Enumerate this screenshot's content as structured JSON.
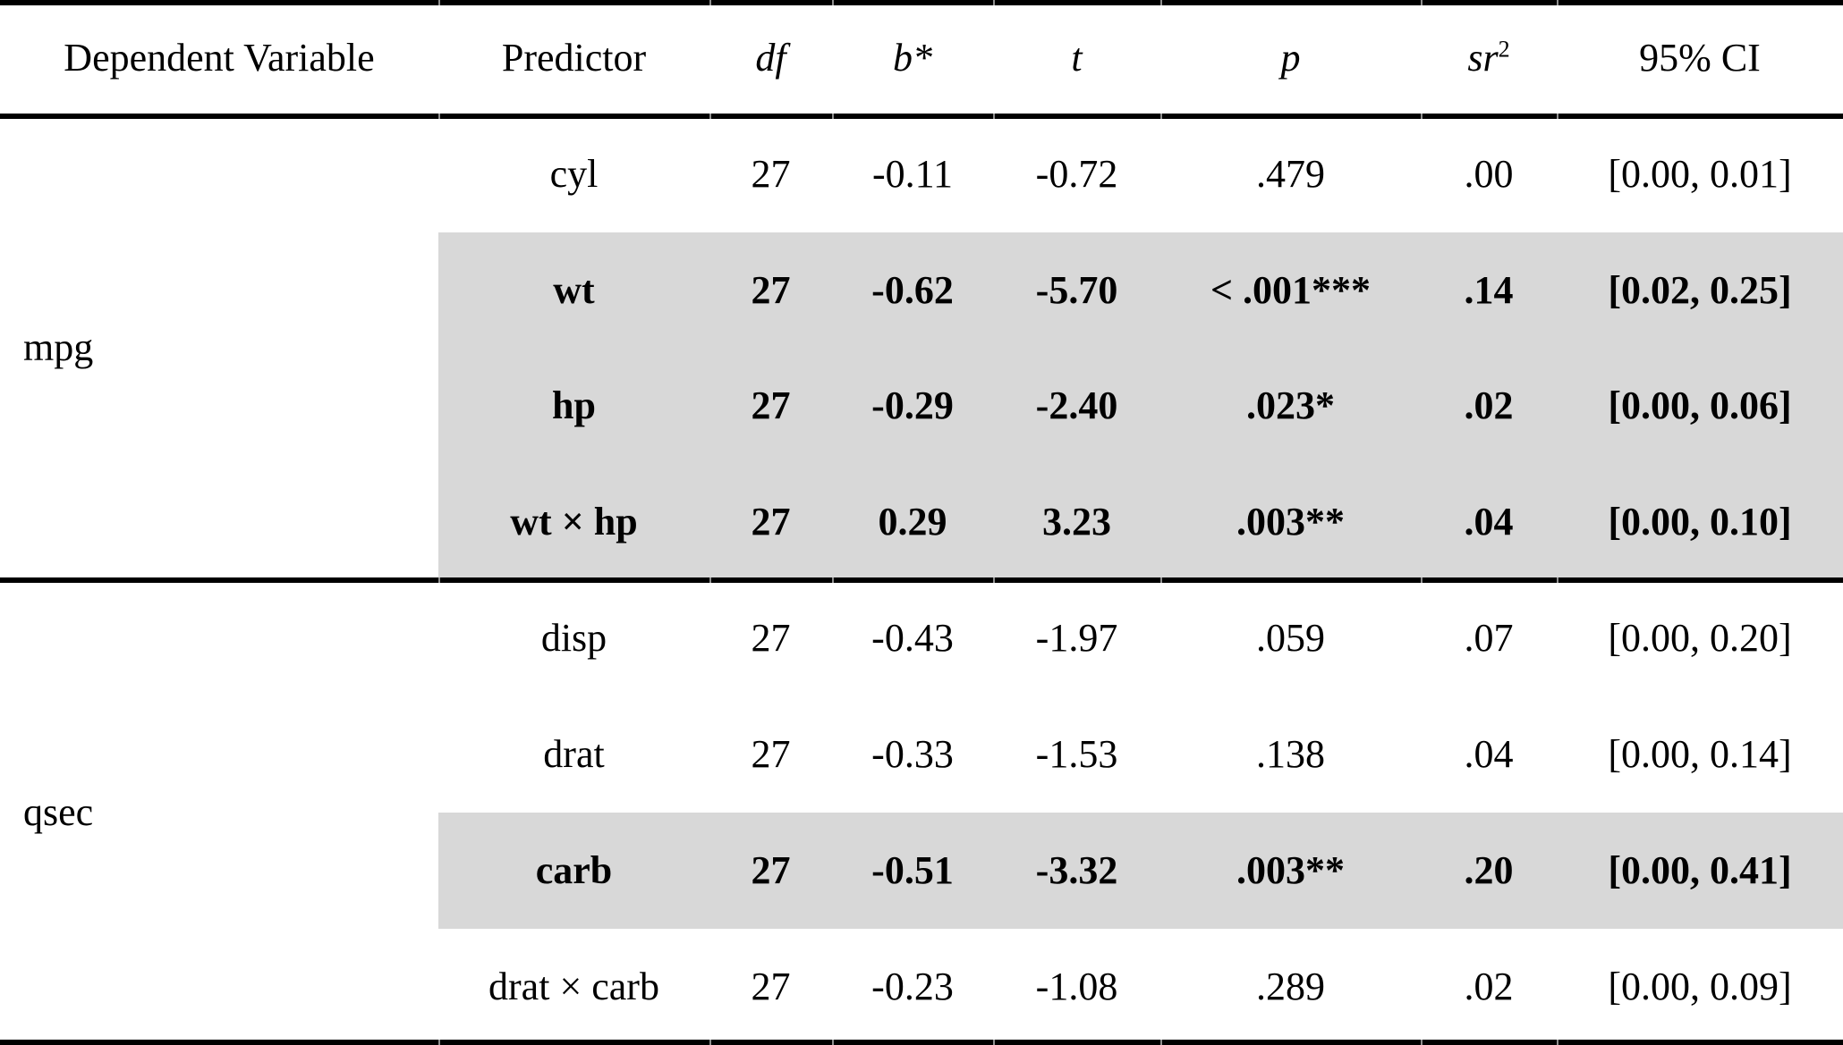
{
  "table": {
    "highlight_color": "#d8d8d8",
    "header": {
      "dependent_variable": "Dependent Variable",
      "predictor": "Predictor",
      "df": "df",
      "b_star": "b*",
      "t": "t",
      "p": "p",
      "sr2_base": "sr",
      "sr2_sup": "2",
      "ci": "95% CI"
    },
    "groups": [
      {
        "dv": "mpg",
        "rows": [
          {
            "predictor": "cyl",
            "df": "27",
            "b": "-0.11",
            "t": "-0.72",
            "p": ".479",
            "sr2": ".00",
            "ci": "[0.00, 0.01]",
            "highlighted": false
          },
          {
            "predictor": "wt",
            "df": "27",
            "b": "-0.62",
            "t": "-5.70",
            "p": "< .001***",
            "sr2": ".14",
            "ci": "[0.02, 0.25]",
            "highlighted": true
          },
          {
            "predictor": "hp",
            "df": "27",
            "b": "-0.29",
            "t": "-2.40",
            "p": ".023*",
            "sr2": ".02",
            "ci": "[0.00, 0.06]",
            "highlighted": true
          },
          {
            "predictor": "wt × hp",
            "df": "27",
            "b": "0.29",
            "t": "3.23",
            "p": ".003**",
            "sr2": ".04",
            "ci": "[0.00, 0.10]",
            "highlighted": true
          }
        ]
      },
      {
        "dv": "qsec",
        "rows": [
          {
            "predictor": "disp",
            "df": "27",
            "b": "-0.43",
            "t": "-1.97",
            "p": ".059",
            "sr2": ".07",
            "ci": "[0.00, 0.20]",
            "highlighted": false
          },
          {
            "predictor": "drat",
            "df": "27",
            "b": "-0.33",
            "t": "-1.53",
            "p": ".138",
            "sr2": ".04",
            "ci": "[0.00, 0.14]",
            "highlighted": false
          },
          {
            "predictor": "carb",
            "df": "27",
            "b": "-0.51",
            "t": "-3.32",
            "p": ".003**",
            "sr2": ".20",
            "ci": "[0.00, 0.41]",
            "highlighted": true
          },
          {
            "predictor": "drat × carb",
            "df": "27",
            "b": "-0.23",
            "t": "-1.08",
            "p": ".289",
            "sr2": ".02",
            "ci": "[0.00, 0.09]",
            "highlighted": false
          }
        ]
      }
    ]
  }
}
